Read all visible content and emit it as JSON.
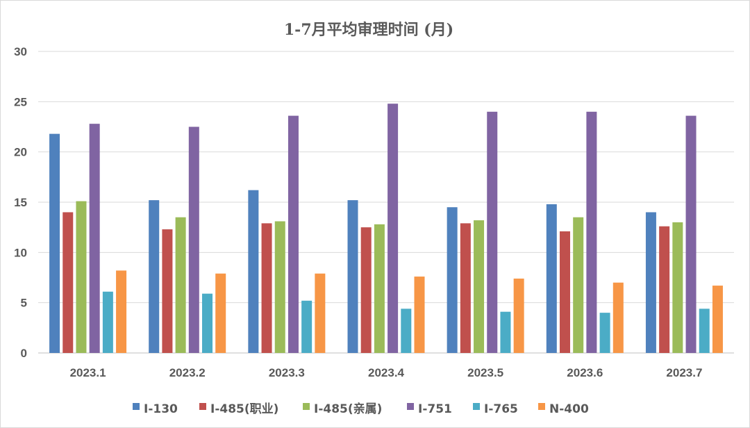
{
  "chart_data": {
    "type": "bar",
    "title": "1-7月平均审理时间 (月)",
    "xlabel": "",
    "ylabel": "",
    "ylim": [
      0,
      30
    ],
    "yticks": [
      0,
      5,
      10,
      15,
      20,
      25,
      30
    ],
    "grid": true,
    "legend_position": "bottom",
    "categories": [
      "2023.1",
      "2023.2",
      "2023.3",
      "2023.4",
      "2023.5",
      "2023.6",
      "2023.7"
    ],
    "series": [
      {
        "name": "I-130",
        "color": "#4f81bd",
        "values": [
          21.8,
          15.2,
          16.2,
          15.2,
          14.5,
          14.8,
          14.0
        ]
      },
      {
        "name": "I-485(职业)",
        "color": "#c0504d",
        "values": [
          14.0,
          12.3,
          12.9,
          12.5,
          12.9,
          12.1,
          12.6
        ]
      },
      {
        "name": "I-485(亲属)",
        "color": "#9bbb59",
        "values": [
          15.1,
          13.5,
          13.1,
          12.8,
          13.2,
          13.5,
          13.0
        ]
      },
      {
        "name": "I-751",
        "color": "#8064a2",
        "values": [
          22.8,
          22.5,
          23.6,
          24.8,
          24.0,
          24.0,
          23.6
        ]
      },
      {
        "name": "I-765",
        "color": "#4bacc6",
        "values": [
          6.1,
          5.9,
          5.2,
          4.4,
          4.1,
          4.0,
          4.4
        ]
      },
      {
        "name": "N-400",
        "color": "#f79646",
        "values": [
          8.2,
          7.9,
          7.9,
          7.6,
          7.4,
          7.0,
          6.7
        ]
      }
    ]
  }
}
